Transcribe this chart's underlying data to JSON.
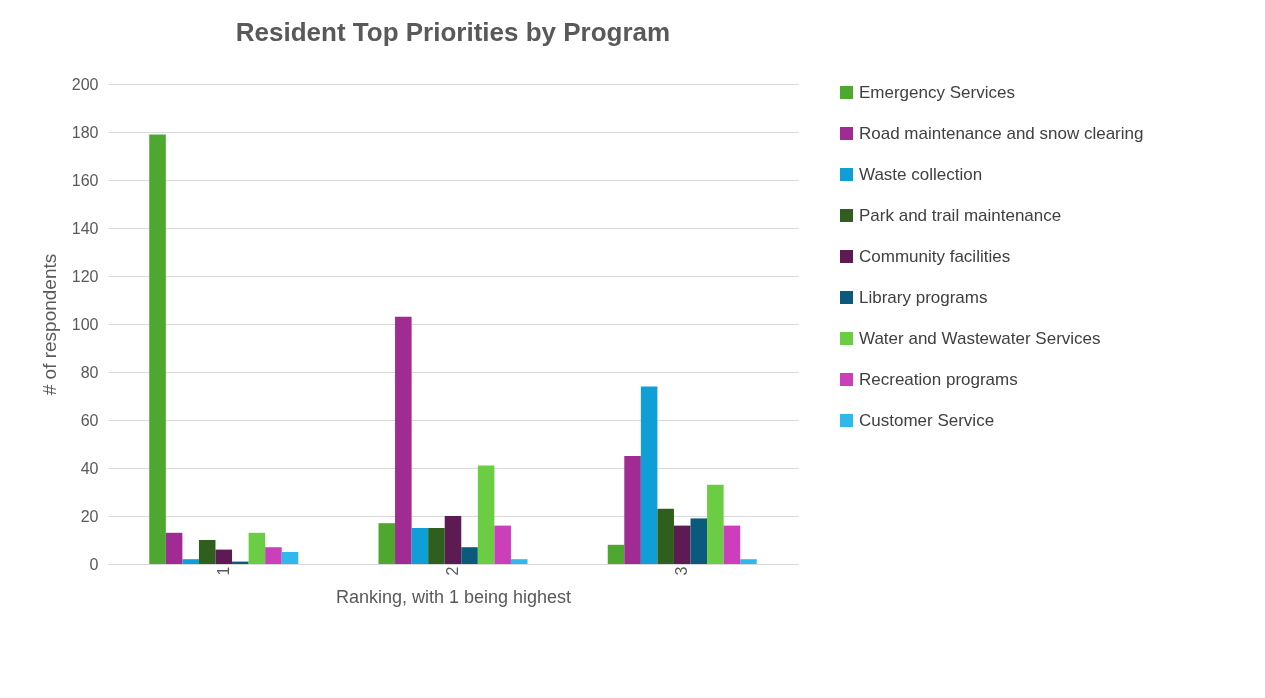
{
  "chart_data": {
    "type": "bar",
    "title": "Resident Top Priorities by Program",
    "xlabel": "Ranking, with 1 being highest",
    "ylabel": "# of respondents",
    "categories": [
      "1",
      "2",
      "3"
    ],
    "series": [
      {
        "name": "Emergency Services",
        "color": "#4ea72e",
        "values": [
          179,
          17,
          8
        ]
      },
      {
        "name": "Road maintenance and snow clearing",
        "color": "#a02b93",
        "values": [
          13,
          103,
          45
        ]
      },
      {
        "name": "Waste collection",
        "color": "#0f9ed5",
        "values": [
          2,
          15,
          74
        ]
      },
      {
        "name": "Park and trail maintenance",
        "color": "#2f5f1c",
        "values": [
          10,
          15,
          23
        ]
      },
      {
        "name": "Community facilities",
        "color": "#5e1a52",
        "values": [
          6,
          20,
          16
        ]
      },
      {
        "name": "Library programs",
        "color": "#0b5a7e",
        "values": [
          1,
          7,
          19
        ]
      },
      {
        "name": "Water and Wastewater Services",
        "color": "#6bcd43",
        "values": [
          13,
          41,
          33
        ]
      },
      {
        "name": "Recreation programs",
        "color": "#cc3fbb",
        "values": [
          7,
          16,
          16
        ]
      },
      {
        "name": "Customer Service",
        "color": "#2fb8ec",
        "values": [
          5,
          2,
          2
        ]
      }
    ],
    "ylim": [
      0,
      200
    ],
    "yticks": [
      0,
      20,
      40,
      60,
      80,
      100,
      120,
      140,
      160,
      180,
      200
    ],
    "grid": "y",
    "legend": "right"
  }
}
